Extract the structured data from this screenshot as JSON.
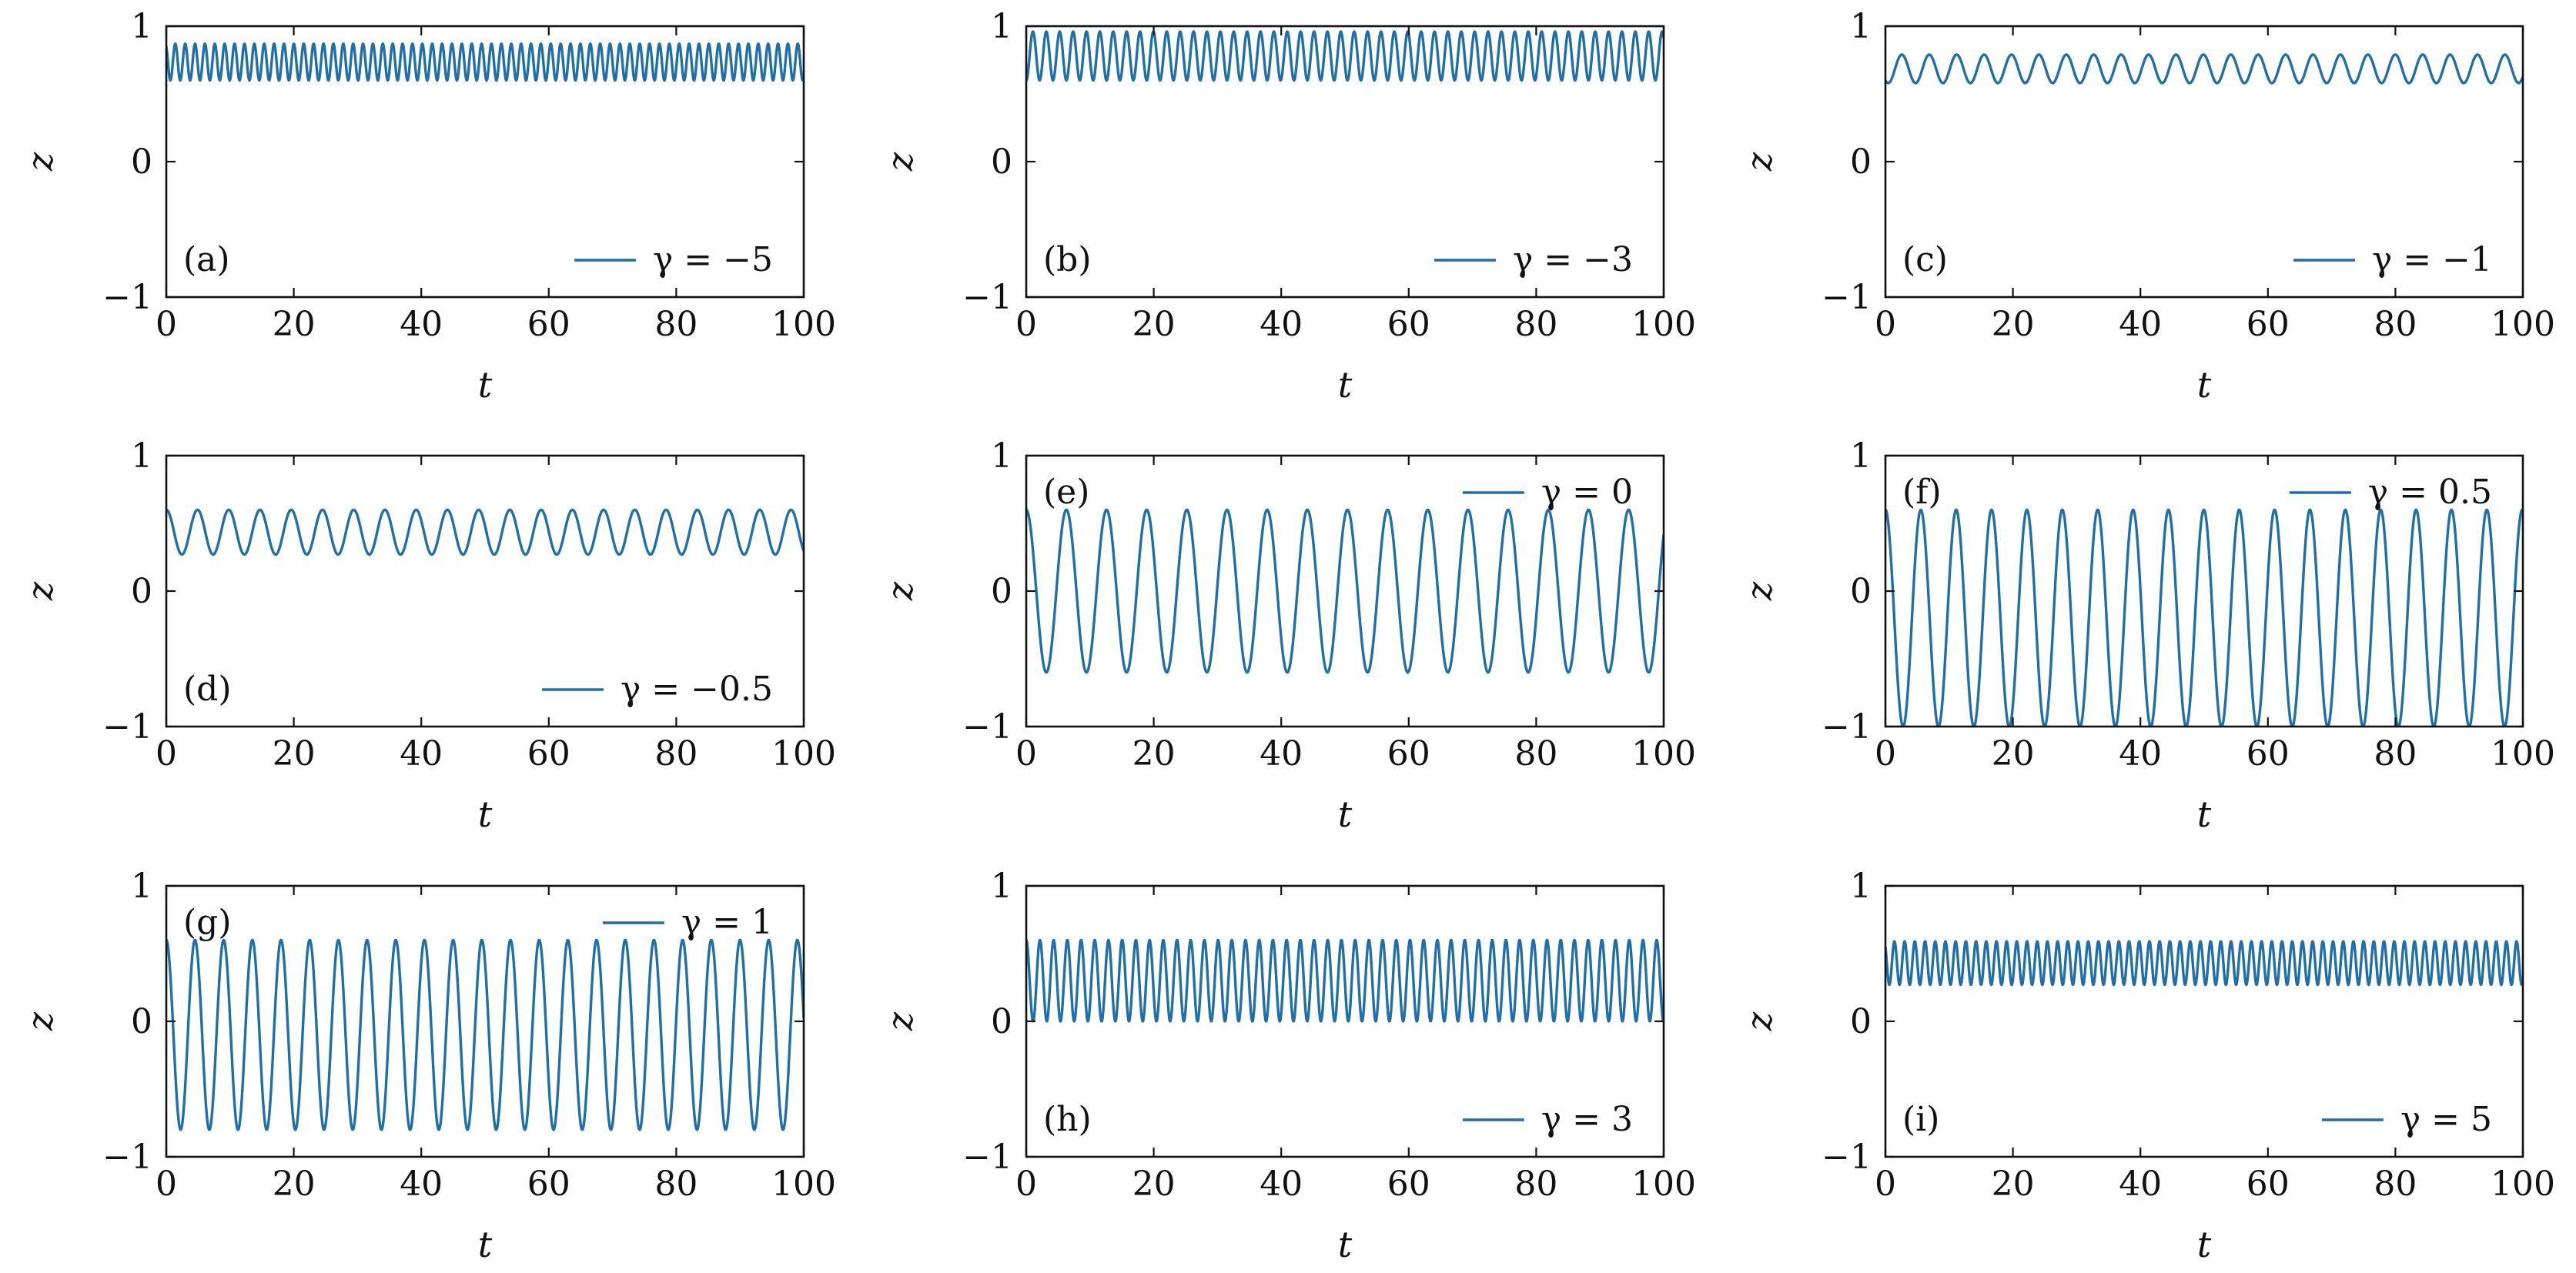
{
  "chart_data": [
    {
      "type": "line",
      "panel_label": "(a)",
      "legend": "γ = −5",
      "xlabel": "t",
      "ylabel": "z",
      "xlim": [
        0,
        100
      ],
      "ylim": [
        -1,
        1
      ],
      "xticks": [
        "0",
        "20",
        "40",
        "60",
        "80",
        "100"
      ],
      "yticks": [
        "1",
        "0",
        "−1"
      ],
      "series": [
        {
          "name": "γ = −5",
          "color": "#1f6fa8",
          "function": "oscillation",
          "period": 1.55,
          "min": 0.6,
          "max": 0.87,
          "start": 0.85
        }
      ],
      "legend_position": "bottom-right",
      "panel_label_position": "bottom-left"
    },
    {
      "type": "line",
      "panel_label": "(b)",
      "legend": "γ = −3",
      "xlabel": "t",
      "ylabel": "z",
      "xlim": [
        0,
        100
      ],
      "ylim": [
        -1,
        1
      ],
      "xticks": [
        "0",
        "20",
        "40",
        "60",
        "80",
        "100"
      ],
      "yticks": [
        "1",
        "0",
        "−1"
      ],
      "series": [
        {
          "name": "γ = −3",
          "color": "#1f6fa8",
          "function": "oscillation",
          "period": 2.1,
          "min": 0.6,
          "max": 0.96,
          "start": 0.6
        }
      ],
      "legend_position": "bottom-right",
      "panel_label_position": "bottom-left"
    },
    {
      "type": "line",
      "panel_label": "(c)",
      "legend": "γ = −1",
      "xlabel": "t",
      "ylabel": "z",
      "xlim": [
        0,
        100
      ],
      "ylim": [
        -1,
        1
      ],
      "xticks": [
        "0",
        "20",
        "40",
        "60",
        "80",
        "100"
      ],
      "yticks": [
        "1",
        "0",
        "−1"
      ],
      "series": [
        {
          "name": "γ = −1",
          "color": "#1f6fa8",
          "function": "oscillation",
          "period": 4.3,
          "min": 0.58,
          "max": 0.79,
          "start": 0.6
        }
      ],
      "legend_position": "bottom-right",
      "panel_label_position": "bottom-left"
    },
    {
      "type": "line",
      "panel_label": "(d)",
      "legend": "γ = −0.5",
      "xlabel": "t",
      "ylabel": "z",
      "xlim": [
        0,
        100
      ],
      "ylim": [
        -1,
        1
      ],
      "xticks": [
        "0",
        "20",
        "40",
        "60",
        "80",
        "100"
      ],
      "yticks": [
        "1",
        "0",
        "−1"
      ],
      "series": [
        {
          "name": "γ = −0.5",
          "color": "#1f6fa8",
          "function": "oscillation",
          "period": 4.9,
          "min": 0.27,
          "max": 0.6,
          "start": 0.6
        }
      ],
      "legend_position": "bottom-right",
      "panel_label_position": "bottom-left"
    },
    {
      "type": "line",
      "panel_label": "(e)",
      "legend": "γ = 0",
      "xlabel": "t",
      "ylabel": "z",
      "xlim": [
        0,
        100
      ],
      "ylim": [
        -1,
        1
      ],
      "xticks": [
        "0",
        "20",
        "40",
        "60",
        "80",
        "100"
      ],
      "yticks": [
        "1",
        "0",
        "−1"
      ],
      "series": [
        {
          "name": "γ = 0",
          "color": "#1f6fa8",
          "function": "oscillation",
          "period": 6.3,
          "min": -0.6,
          "max": 0.6,
          "start": 0.6
        }
      ],
      "legend_position": "top-right",
      "panel_label_position": "top-left"
    },
    {
      "type": "line",
      "panel_label": "(f)",
      "legend": "γ = 0.5",
      "xlabel": "t",
      "ylabel": "z",
      "xlim": [
        0,
        100
      ],
      "ylim": [
        -1,
        1
      ],
      "xticks": [
        "0",
        "20",
        "40",
        "60",
        "80",
        "100"
      ],
      "yticks": [
        "1",
        "0",
        "−1"
      ],
      "series": [
        {
          "name": "γ = 0.5",
          "color": "#1f6fa8",
          "function": "oscillation",
          "period": 5.55,
          "min": -1.0,
          "max": 0.6,
          "start": 0.6
        }
      ],
      "legend_position": "top-right",
      "panel_label_position": "top-left"
    },
    {
      "type": "line",
      "panel_label": "(g)",
      "legend": "γ = 1",
      "xlabel": "t",
      "ylabel": "z",
      "xlim": [
        0,
        100
      ],
      "ylim": [
        -1,
        1
      ],
      "xticks": [
        "0",
        "20",
        "40",
        "60",
        "80",
        "100"
      ],
      "yticks": [
        "1",
        "0",
        "−1"
      ],
      "series": [
        {
          "name": "γ = 1",
          "color": "#1f6fa8",
          "function": "oscillation",
          "period": 4.5,
          "min": -0.8,
          "max": 0.6,
          "start": 0.6
        }
      ],
      "legend_position": "top-right",
      "panel_label_position": "top-left"
    },
    {
      "type": "line",
      "panel_label": "(h)",
      "legend": "γ = 3",
      "xlabel": "t",
      "ylabel": "z",
      "xlim": [
        0,
        100
      ],
      "ylim": [
        -1,
        1
      ],
      "xticks": [
        "0",
        "20",
        "40",
        "60",
        "80",
        "100"
      ],
      "yticks": [
        "1",
        "0",
        "−1"
      ],
      "series": [
        {
          "name": "γ = 3",
          "color": "#1f6fa8",
          "function": "oscillation",
          "period": 2.15,
          "min": 0.0,
          "max": 0.6,
          "start": 0.6
        }
      ],
      "legend_position": "bottom-right",
      "panel_label_position": "bottom-left"
    },
    {
      "type": "line",
      "panel_label": "(i)",
      "legend": "γ = 5",
      "xlabel": "t",
      "ylabel": "z",
      "xlim": [
        0,
        100
      ],
      "ylim": [
        -1,
        1
      ],
      "xticks": [
        "0",
        "20",
        "40",
        "60",
        "80",
        "100"
      ],
      "yticks": [
        "1",
        "0",
        "−1"
      ],
      "series": [
        {
          "name": "γ = 5",
          "color": "#1f6fa8",
          "function": "oscillation",
          "period": 1.6,
          "min": 0.27,
          "max": 0.59,
          "start": 0.55
        }
      ],
      "legend_position": "bottom-right",
      "panel_label_position": "bottom-left"
    }
  ]
}
